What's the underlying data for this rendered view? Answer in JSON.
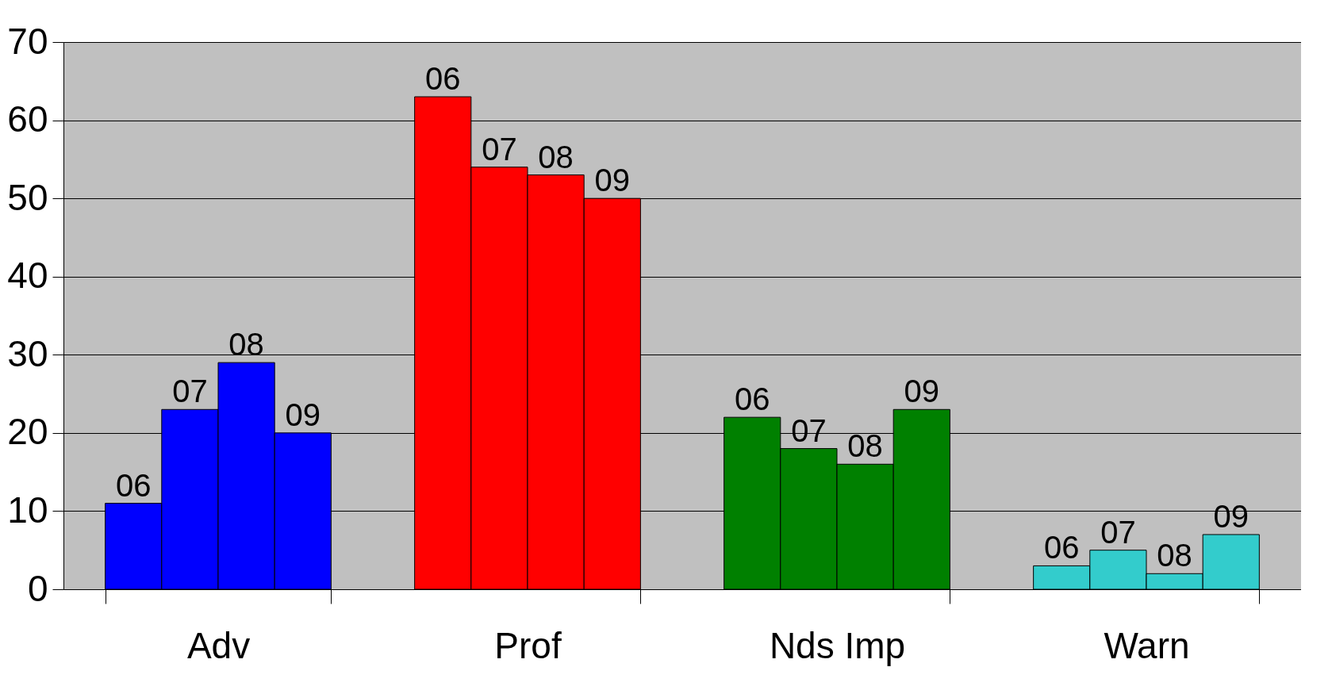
{
  "chart_data": {
    "type": "bar",
    "categories": [
      "Adv",
      "Prof",
      "Nds Imp",
      "Warn"
    ],
    "series": [
      {
        "name": "06",
        "colors": [
          "#0000ff",
          "#ff0000",
          "#008000",
          "#33cccc"
        ],
        "values": [
          11,
          63,
          22,
          3
        ]
      },
      {
        "name": "07",
        "colors": [
          "#0000ff",
          "#ff0000",
          "#008000",
          "#33cccc"
        ],
        "values": [
          23,
          54,
          18,
          5
        ]
      },
      {
        "name": "08",
        "colors": [
          "#0000ff",
          "#ff0000",
          "#008000",
          "#33cccc"
        ],
        "values": [
          29,
          53,
          16,
          2
        ]
      },
      {
        "name": "09",
        "colors": [
          "#0000ff",
          "#ff0000",
          "#008000",
          "#33cccc"
        ],
        "values": [
          20,
          50,
          23,
          7
        ]
      }
    ],
    "ylim": [
      0,
      70
    ],
    "yticks": [
      0,
      10,
      20,
      30,
      40,
      50,
      60,
      70
    ],
    "grid": "y"
  }
}
